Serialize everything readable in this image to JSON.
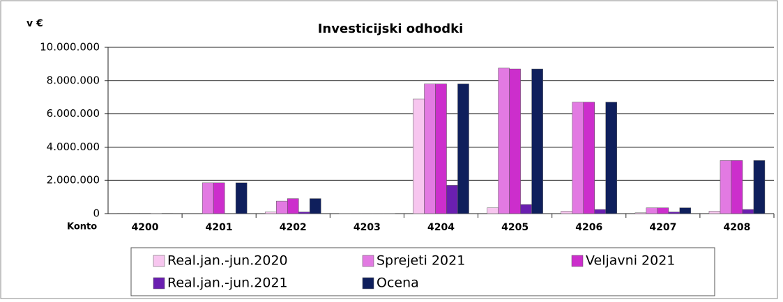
{
  "chart_data": {
    "type": "bar",
    "title": "Investicijski odhodki",
    "y_unit_label": "v €",
    "x_label": "Konto",
    "categories": [
      "4200",
      "4201",
      "4202",
      "4203",
      "4204",
      "4205",
      "4206",
      "4207",
      "4208"
    ],
    "series": [
      {
        "name": "Real.jan.-jun.2020",
        "color": "#f7c6ef",
        "values": [
          20000,
          0,
          100000,
          10000,
          6900000,
          350000,
          150000,
          50000,
          150000
        ]
      },
      {
        "name": "Sprejeti 2021",
        "color": "#e27ae2",
        "values": [
          20000,
          1850000,
          750000,
          10000,
          7800000,
          8750000,
          6700000,
          350000,
          3200000
        ]
      },
      {
        "name": "Veljavni 2021",
        "color": "#cc2ecc",
        "values": [
          20000,
          1850000,
          900000,
          10000,
          7800000,
          8700000,
          6700000,
          350000,
          3200000
        ]
      },
      {
        "name": "Real.jan.-jun.2021",
        "color": "#6a1fb0",
        "values": [
          10000,
          0,
          100000,
          10000,
          1700000,
          550000,
          250000,
          100000,
          250000
        ]
      },
      {
        "name": "Ocena",
        "color": "#0f1f5c",
        "values": [
          20000,
          1850000,
          900000,
          10000,
          7800000,
          8700000,
          6700000,
          350000,
          3200000
        ]
      }
    ],
    "ylim": [
      0,
      10000000
    ],
    "yticks": [
      0,
      {
        "value": 2000000,
        "label": "2.000.000"
      },
      {
        "value": 4000000,
        "label": "4.000.000"
      },
      {
        "value": 6000000,
        "label": "6.000.000"
      },
      {
        "value": 8000000,
        "label": "8.000.000"
      },
      {
        "value": 10000000,
        "label": "10.000.000"
      }
    ],
    "grid": true
  }
}
